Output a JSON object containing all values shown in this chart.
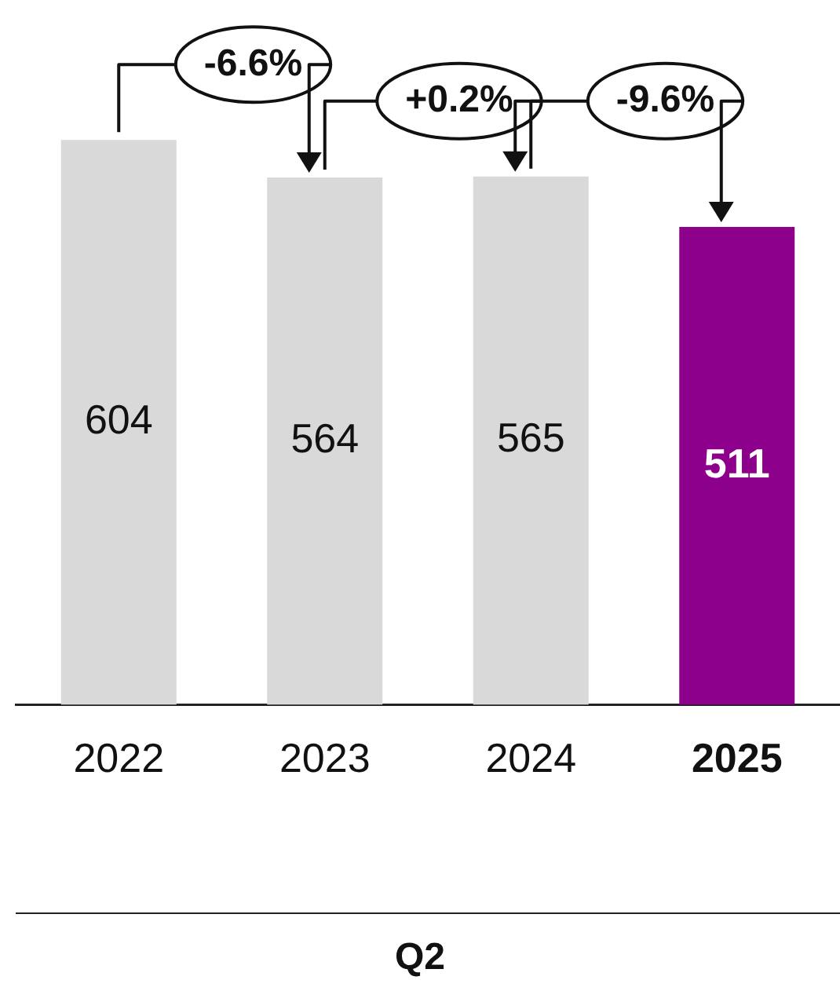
{
  "chart_data": {
    "type": "bar",
    "categories": [
      "2022",
      "2023",
      "2024",
      "2025"
    ],
    "values": [
      604,
      564,
      565,
      511
    ],
    "colors": [
      "#d9d9d9",
      "#d9d9d9",
      "#d9d9d9",
      "#8c008c"
    ],
    "data_labels": true,
    "annotations": [
      "-6.6%",
      "+0.2%",
      "-9.6%"
    ],
    "xlabel": "Q2",
    "legend": false,
    "grid": false
  }
}
